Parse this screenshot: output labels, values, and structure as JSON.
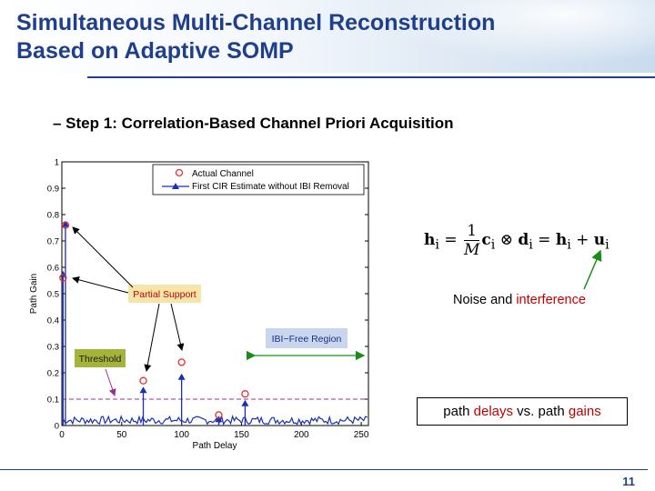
{
  "slide": {
    "title_line1": "Simultaneous Multi-Channel Reconstruction",
    "title_line2": "Based on Adaptive SOMP",
    "bullet": "– Step 1: Correlation-Based Channel Priori Acquisition",
    "noise_label": {
      "prefix": "Noise and ",
      "highlight": "interference"
    },
    "boxed_label": {
      "part1": "path ",
      "part2": "delays",
      "part3": " vs. path ",
      "part4": "gains"
    },
    "page_number": "11",
    "colors": {
      "title": "#1f3f8c",
      "highlight": "#c00000",
      "accent_line": "#1f3f8c"
    }
  },
  "equation": {
    "lhs": "h",
    "lhs_sub": "i",
    "eq": "=",
    "frac_num": "1",
    "frac_den": "M",
    "c": "c",
    "c_sub": "i",
    "otimes": "⊗",
    "d": "d",
    "d_sub": "i",
    "eq2": "=",
    "h2": "h",
    "h2_sub": "i",
    "plus": "+",
    "u": "u",
    "u_sub": "i"
  },
  "chart_data": {
    "type": "scatter",
    "xlabel": "Path Delay",
    "ylabel": "Path Gain",
    "xlim": [
      0,
      256
    ],
    "ylim": [
      0,
      1
    ],
    "xticks": [
      0,
      50,
      100,
      150,
      200,
      250
    ],
    "yticks": [
      0,
      0.1,
      0.2,
      0.3,
      0.4,
      0.5,
      0.6,
      0.7,
      0.8,
      0.9,
      1
    ],
    "grid": false,
    "legend_position": "top-right",
    "series": [
      {
        "name": "Actual Channel",
        "marker": "circle",
        "color": "#e03030",
        "x": [
          3,
          1,
          68,
          100,
          131,
          153
        ],
        "y": [
          0.76,
          0.56,
          0.17,
          0.24,
          0.04,
          0.12
        ]
      },
      {
        "name": "First CIR Estimate without IBI Removal",
        "marker": "triangle",
        "color": "#1a2fb8",
        "x": [
          3,
          1,
          68,
          100,
          131,
          153
        ],
        "y": [
          0.76,
          0.57,
          0.13,
          0.18,
          0.02,
          0.08
        ]
      }
    ],
    "threshold": {
      "value": 0.1,
      "color": "#a03090"
    },
    "annotations": {
      "partial_support": "Partial Support",
      "threshold_label": "Threshold",
      "ibi_free": "IBI−Free Region"
    }
  }
}
